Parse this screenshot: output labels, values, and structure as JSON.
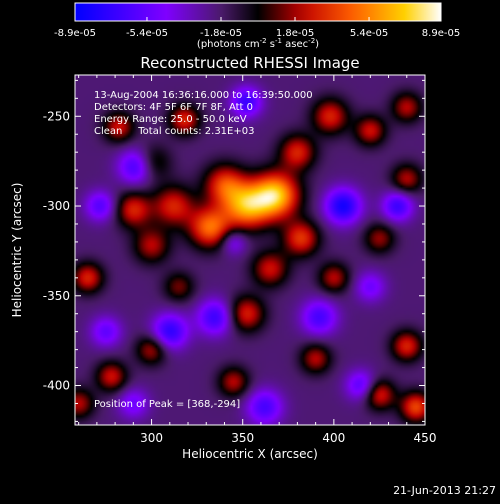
{
  "colorbar": {
    "tick_labels": [
      "-8.9e-05",
      "-5.4e-05",
      "-1.8e-05",
      "1.8e-05",
      "5.4e-05",
      "8.9e-05"
    ],
    "unit_label": "(photons cm",
    "unit_sup1": "-2",
    "unit_mid": " s",
    "unit_sup2": "-1",
    "unit_mid2": " asec",
    "unit_sup3": "-2",
    "unit_end": ")"
  },
  "plot": {
    "title": "Reconstructed RHESSI Image",
    "info_lines": [
      "13-Aug-2004 16:36:16.000 to 16:39:50.000",
      "Detectors: 4F 5F 6F 7F 8F, Att 0",
      "Energy Range: 25.0 - 50.0 keV",
      "Clean     Total counts: 2.31E+03"
    ],
    "peak_text": "Position of Peak = [368,-294]",
    "timestamp": "21-Jun-2013 21:27"
  },
  "chart_data": {
    "type": "heatmap",
    "title": "Reconstructed RHESSI Image",
    "xlabel": "Heliocentric X (arcsec)",
    "ylabel": "Heliocentric Y (arcsec)",
    "xlim": [
      258,
      450
    ],
    "ylim": [
      -422,
      -227
    ],
    "x_ticks": [
      300,
      350,
      400,
      450
    ],
    "x_tick_labels": [
      "300",
      "350",
      "400",
      "450"
    ],
    "y_ticks": [
      -250,
      -300,
      -350,
      -400
    ],
    "y_tick_labels": [
      "-250",
      "-300",
      "-350",
      "-400"
    ],
    "value_range": [
      -8.9e-05,
      8.9e-05
    ],
    "colormap": [
      "#0000ff",
      "#7f00ff",
      "#4a1a6a",
      "#000000",
      "#c00000",
      "#ff6000",
      "#ffd000",
      "#ffffff"
    ],
    "peak_position": [
      368,
      -294
    ],
    "sources": [
      {
        "x": 368,
        "y": -294,
        "amp": 1.0,
        "sigma": 9
      },
      {
        "x": 352,
        "y": -300,
        "amp": 0.85,
        "sigma": 9
      },
      {
        "x": 332,
        "y": -312,
        "amp": 0.75,
        "sigma": 8
      },
      {
        "x": 340,
        "y": -288,
        "amp": 0.6,
        "sigma": 8
      },
      {
        "x": 312,
        "y": -300,
        "amp": 0.55,
        "sigma": 8
      },
      {
        "x": 290,
        "y": -302,
        "amp": 0.55,
        "sigma": 7
      },
      {
        "x": 300,
        "y": -276,
        "amp": 0.4,
        "sigma": 7
      },
      {
        "x": 300,
        "y": -322,
        "amp": 0.45,
        "sigma": 7
      },
      {
        "x": 318,
        "y": -252,
        "amp": 0.55,
        "sigma": 6
      },
      {
        "x": 282,
        "y": -256,
        "amp": 0.5,
        "sigma": 6
      },
      {
        "x": 380,
        "y": -270,
        "amp": 0.55,
        "sigma": 7
      },
      {
        "x": 398,
        "y": -250,
        "amp": 0.55,
        "sigma": 7
      },
      {
        "x": 420,
        "y": -258,
        "amp": 0.5,
        "sigma": 6
      },
      {
        "x": 440,
        "y": -245,
        "amp": 0.45,
        "sigma": 6
      },
      {
        "x": 382,
        "y": -318,
        "amp": 0.6,
        "sigma": 7
      },
      {
        "x": 365,
        "y": -335,
        "amp": 0.5,
        "sigma": 7
      },
      {
        "x": 352,
        "y": -360,
        "amp": 0.55,
        "sigma": 7
      },
      {
        "x": 400,
        "y": -340,
        "amp": 0.45,
        "sigma": 6
      },
      {
        "x": 425,
        "y": -318,
        "amp": 0.4,
        "sigma": 6
      },
      {
        "x": 440,
        "y": -378,
        "amp": 0.55,
        "sigma": 6
      },
      {
        "x": 425,
        "y": -405,
        "amp": 0.55,
        "sigma": 6
      },
      {
        "x": 445,
        "y": -412,
        "amp": 0.65,
        "sigma": 6
      },
      {
        "x": 390,
        "y": -385,
        "amp": 0.45,
        "sigma": 6
      },
      {
        "x": 345,
        "y": -398,
        "amp": 0.45,
        "sigma": 6
      },
      {
        "x": 300,
        "y": -380,
        "amp": 0.45,
        "sigma": 6
      },
      {
        "x": 265,
        "y": -340,
        "amp": 0.55,
        "sigma": 6
      },
      {
        "x": 278,
        "y": -395,
        "amp": 0.5,
        "sigma": 6
      },
      {
        "x": 315,
        "y": -345,
        "amp": 0.35,
        "sigma": 6
      },
      {
        "x": 260,
        "y": -410,
        "amp": 0.45,
        "sigma": 6
      },
      {
        "x": 440,
        "y": -285,
        "amp": 0.45,
        "sigma": 6
      },
      {
        "x": 292,
        "y": -278,
        "amp": -0.6,
        "sigma": 7
      },
      {
        "x": 272,
        "y": -300,
        "amp": -0.45,
        "sigma": 6
      },
      {
        "x": 352,
        "y": -242,
        "amp": -0.55,
        "sigma": 6
      },
      {
        "x": 405,
        "y": -300,
        "amp": -0.7,
        "sigma": 7
      },
      {
        "x": 435,
        "y": -300,
        "amp": -0.55,
        "sigma": 6
      },
      {
        "x": 310,
        "y": -370,
        "amp": -0.6,
        "sigma": 7
      },
      {
        "x": 335,
        "y": -362,
        "amp": -0.55,
        "sigma": 7
      },
      {
        "x": 392,
        "y": -362,
        "amp": -0.5,
        "sigma": 7
      },
      {
        "x": 415,
        "y": -400,
        "amp": -0.45,
        "sigma": 6
      },
      {
        "x": 362,
        "y": -412,
        "amp": -0.5,
        "sigma": 7
      },
      {
        "x": 275,
        "y": -370,
        "amp": -0.4,
        "sigma": 6
      },
      {
        "x": 345,
        "y": -320,
        "amp": -0.35,
        "sigma": 5
      },
      {
        "x": 420,
        "y": -345,
        "amp": -0.35,
        "sigma": 6
      },
      {
        "x": 290,
        "y": -410,
        "amp": -0.35,
        "sigma": 6
      }
    ],
    "background_level": -0.22
  }
}
